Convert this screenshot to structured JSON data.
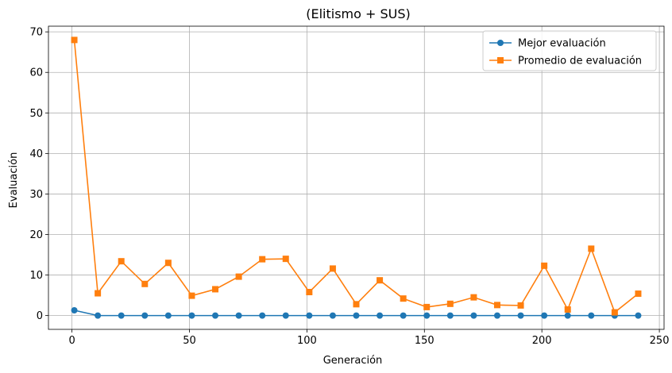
{
  "chart_data": {
    "type": "line",
    "title": "(Elitismo + SUS)",
    "xlabel": "Generación",
    "ylabel": "Evaluación",
    "xlim": [
      -10,
      252
    ],
    "ylim": [
      -3.4,
      71.4
    ],
    "xticks": [
      0,
      50,
      100,
      150,
      200,
      250
    ],
    "yticks": [
      0,
      10,
      20,
      30,
      40,
      50,
      60,
      70
    ],
    "grid": true,
    "legend_position": "top-right",
    "x": [
      1,
      11,
      21,
      31,
      41,
      51,
      61,
      71,
      81,
      91,
      101,
      111,
      121,
      131,
      141,
      151,
      161,
      171,
      181,
      191,
      201,
      211,
      221,
      231,
      241
    ],
    "series": [
      {
        "name": "Mejor evaluación",
        "color": "#1f77b4",
        "marker": "circle",
        "values": [
          1.3,
          0,
          0,
          0,
          0,
          0,
          0,
          0,
          0,
          0,
          0,
          0,
          0,
          0,
          0,
          0,
          0,
          0,
          0,
          0,
          0,
          0,
          0,
          0,
          0
        ]
      },
      {
        "name": "Promedio de evaluación",
        "color": "#ff7f0e",
        "marker": "square",
        "values": [
          68.0,
          5.5,
          13.4,
          7.8,
          13.0,
          4.9,
          6.5,
          9.6,
          13.9,
          14.0,
          5.8,
          11.6,
          2.8,
          8.7,
          4.2,
          2.1,
          2.9,
          4.5,
          2.6,
          2.5,
          12.3,
          1.5,
          16.5,
          0.8,
          5.4
        ]
      }
    ]
  }
}
